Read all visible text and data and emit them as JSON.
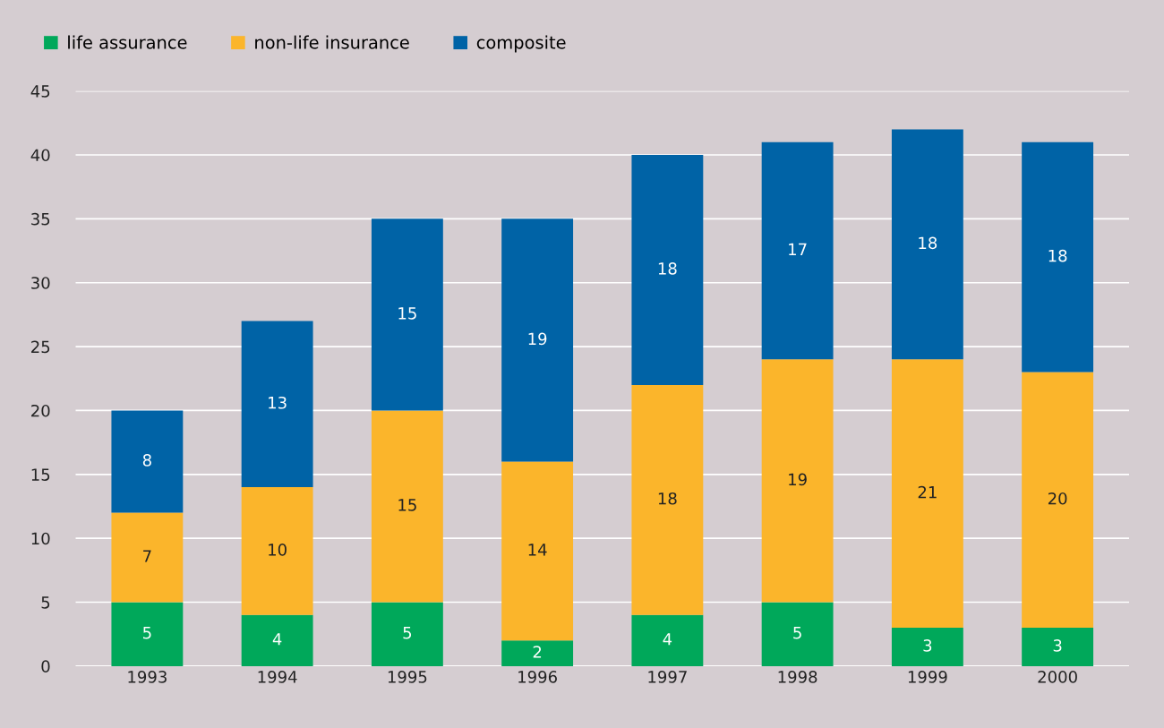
{
  "chart_data": {
    "type": "bar",
    "stacked": true,
    "categories": [
      "1993",
      "1994",
      "1995",
      "1996",
      "1997",
      "1998",
      "1999",
      "2000"
    ],
    "series": [
      {
        "name": "life assurance",
        "color": "#00a85a",
        "values": [
          5,
          4,
          5,
          2,
          4,
          5,
          3,
          3
        ]
      },
      {
        "name": "non-life insurance",
        "color": "#fbb52b",
        "values": [
          7,
          10,
          15,
          14,
          18,
          19,
          21,
          20
        ]
      },
      {
        "name": "composite",
        "color": "#0063a6",
        "values": [
          8,
          13,
          15,
          19,
          18,
          17,
          18,
          18
        ]
      }
    ],
    "ylim": [
      0,
      45
    ],
    "yticks": [
      0,
      5,
      10,
      15,
      20,
      25,
      30,
      35,
      40,
      45
    ],
    "grid": "y",
    "legend": "top left",
    "data_labels": true
  }
}
